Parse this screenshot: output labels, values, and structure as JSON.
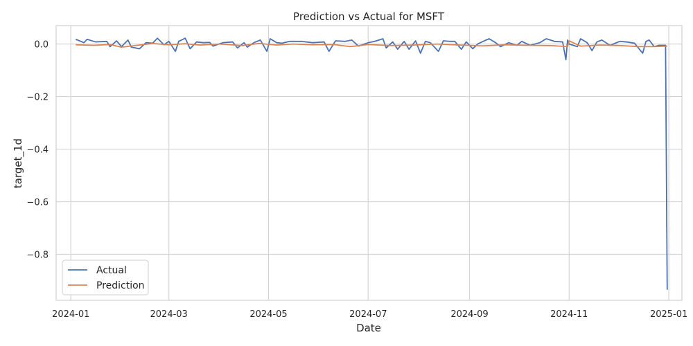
{
  "chart_data": {
    "type": "line",
    "title": "Prediction vs Actual for MSFT",
    "xlabel": "Date",
    "ylabel": "target_1d",
    "xlim": [
      "2023-12-23",
      "2025-01-09"
    ],
    "ylim": [
      -0.975,
      0.07
    ],
    "x_ticks": [
      "2024-01-01",
      "2024-03-01",
      "2024-05-01",
      "2024-07-01",
      "2024-09-01",
      "2024-11-01",
      "2025-01-01"
    ],
    "x_tick_labels": [
      "2024-01",
      "2024-03",
      "2024-05",
      "2024-07",
      "2024-09",
      "2024-11",
      "2025-01"
    ],
    "y_ticks": [
      0.0,
      -0.2,
      -0.4,
      -0.6,
      -0.8
    ],
    "y_tick_labels": [
      "0.0",
      "−0.2",
      "−0.4",
      "−0.6",
      "−0.8"
    ],
    "grid": true,
    "legend_position": "lower-left",
    "series": [
      {
        "name": "Actual",
        "color": "#4c72b0",
        "x": [
          "2024-01-04",
          "2024-01-09",
          "2024-01-11",
          "2024-01-16",
          "2024-01-23",
          "2024-01-25",
          "2024-01-29",
          "2024-02-01",
          "2024-02-05",
          "2024-02-07",
          "2024-02-12",
          "2024-02-16",
          "2024-02-20",
          "2024-02-23",
          "2024-02-27",
          "2024-03-01",
          "2024-03-05",
          "2024-03-07",
          "2024-03-11",
          "2024-03-14",
          "2024-03-18",
          "2024-03-22",
          "2024-03-26",
          "2024-03-28",
          "2024-04-03",
          "2024-04-09",
          "2024-04-12",
          "2024-04-16",
          "2024-04-18",
          "2024-04-22",
          "2024-04-26",
          "2024-04-30",
          "2024-05-02",
          "2024-05-06",
          "2024-05-09",
          "2024-05-14",
          "2024-05-21",
          "2024-05-28",
          "2024-06-04",
          "2024-06-07",
          "2024-06-11",
          "2024-06-17",
          "2024-06-21",
          "2024-06-25",
          "2024-07-01",
          "2024-07-05",
          "2024-07-10",
          "2024-07-12",
          "2024-07-16",
          "2024-07-19",
          "2024-07-23",
          "2024-07-26",
          "2024-07-30",
          "2024-08-02",
          "2024-08-05",
          "2024-08-08",
          "2024-08-13",
          "2024-08-16",
          "2024-08-20",
          "2024-08-23",
          "2024-08-27",
          "2024-08-30",
          "2024-09-03",
          "2024-09-06",
          "2024-09-10",
          "2024-09-13",
          "2024-09-17",
          "2024-09-20",
          "2024-09-25",
          "2024-09-30",
          "2024-10-03",
          "2024-10-08",
          "2024-10-14",
          "2024-10-18",
          "2024-10-23",
          "2024-10-28",
          "2024-10-30",
          "2024-10-31",
          "2024-11-01",
          "2024-11-06",
          "2024-11-08",
          "2024-11-12",
          "2024-11-15",
          "2024-11-18",
          "2024-11-21",
          "2024-11-26",
          "2024-12-02",
          "2024-12-06",
          "2024-12-11",
          "2024-12-16",
          "2024-12-18",
          "2024-12-20",
          "2024-12-23",
          "2024-12-26",
          "2024-12-30",
          "2024-12-31"
        ],
        "y": [
          0.018,
          0.005,
          0.018,
          0.008,
          0.01,
          -0.01,
          0.012,
          -0.01,
          0.015,
          -0.012,
          -0.018,
          0.005,
          0.003,
          0.022,
          -0.003,
          0.01,
          -0.028,
          0.01,
          0.022,
          -0.018,
          0.008,
          0.005,
          0.006,
          -0.008,
          0.005,
          0.008,
          -0.015,
          0.005,
          -0.012,
          0.005,
          0.015,
          -0.028,
          0.02,
          0.005,
          0.003,
          0.01,
          0.01,
          0.005,
          0.008,
          -0.028,
          0.012,
          0.01,
          0.015,
          -0.008,
          0.005,
          0.01,
          0.02,
          -0.015,
          0.008,
          -0.02,
          0.01,
          -0.02,
          0.012,
          -0.035,
          0.01,
          0.005,
          -0.028,
          0.012,
          0.01,
          0.01,
          -0.02,
          0.008,
          -0.018,
          0.0,
          0.012,
          0.02,
          0.005,
          -0.01,
          0.005,
          -0.005,
          0.01,
          -0.005,
          0.005,
          0.02,
          0.01,
          0.008,
          -0.06,
          0.015,
          0.0,
          -0.01,
          0.02,
          0.005,
          -0.025,
          0.008,
          0.015,
          -0.005,
          0.01,
          0.008,
          0.003,
          -0.035,
          0.01,
          0.015,
          -0.01,
          -0.005,
          -0.005,
          -0.935
        ]
      },
      {
        "name": "Prediction",
        "color": "#dd8452",
        "x": [
          "2024-01-04",
          "2024-01-15",
          "2024-01-25",
          "2024-02-01",
          "2024-02-12",
          "2024-02-20",
          "2024-03-01",
          "2024-03-11",
          "2024-03-20",
          "2024-04-01",
          "2024-04-15",
          "2024-04-25",
          "2024-05-06",
          "2024-05-16",
          "2024-05-28",
          "2024-06-10",
          "2024-06-20",
          "2024-07-01",
          "2024-07-15",
          "2024-07-29",
          "2024-08-12",
          "2024-08-26",
          "2024-09-09",
          "2024-09-23",
          "2024-10-07",
          "2024-10-21",
          "2024-10-31",
          "2024-11-01",
          "2024-11-08",
          "2024-11-20",
          "2024-12-03",
          "2024-12-13",
          "2024-12-23",
          "2024-12-31"
        ],
        "y": [
          -0.003,
          -0.005,
          -0.002,
          -0.012,
          -0.004,
          0.002,
          -0.003,
          0.001,
          -0.004,
          0.0,
          -0.006,
          0.002,
          -0.004,
          0.0,
          -0.003,
          -0.002,
          -0.01,
          -0.002,
          -0.006,
          -0.004,
          0.0,
          -0.004,
          -0.007,
          -0.003,
          -0.005,
          -0.006,
          -0.01,
          0.012,
          -0.008,
          -0.004,
          -0.006,
          -0.01,
          -0.01,
          -0.008
        ]
      }
    ]
  }
}
